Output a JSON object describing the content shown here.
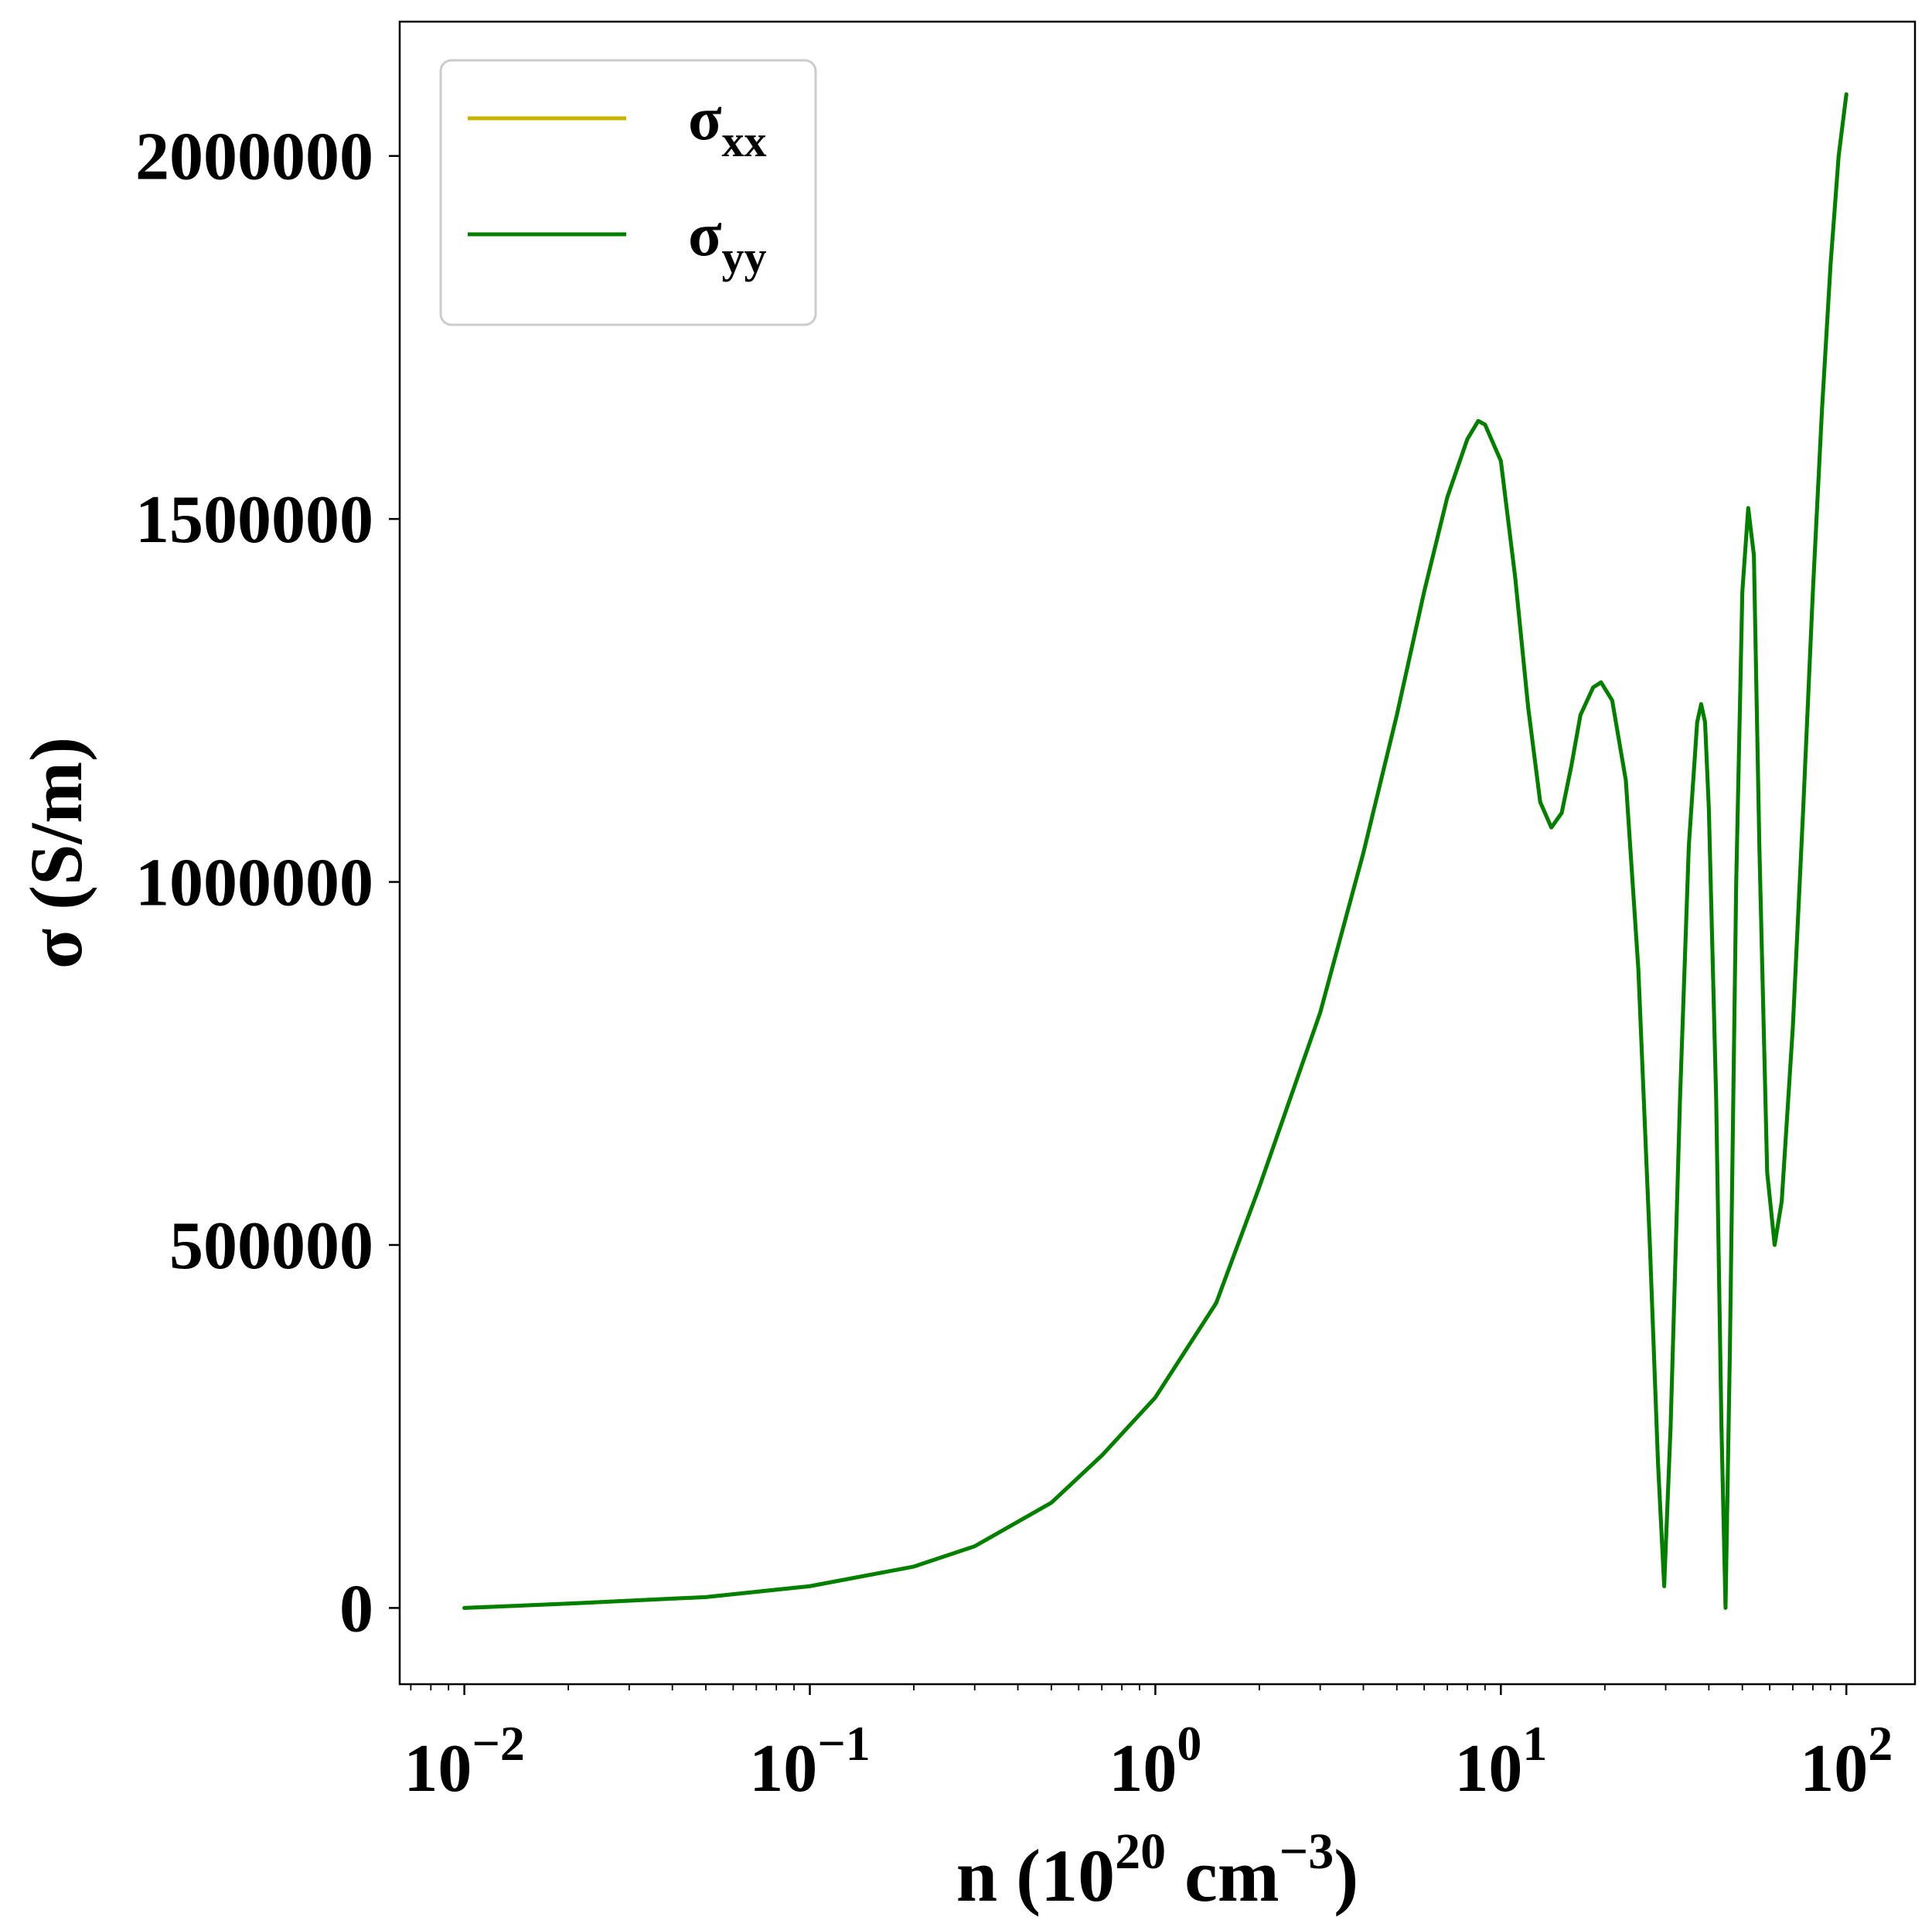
{
  "chart_data": {
    "type": "line",
    "x_scale": "log",
    "xlim": [
      0.0065,
      158
    ],
    "ylim": [
      -105000,
      2185000
    ],
    "xlabel": {
      "main": "n (10",
      "sup1": "20",
      "mid": " cm",
      "sup2": "−3",
      "tail": ")"
    },
    "ylabel": "σ (S/m)",
    "x_ticks": [
      {
        "value": 0.01,
        "base": "10",
        "exp": "−2"
      },
      {
        "value": 0.1,
        "base": "10",
        "exp": "−1"
      },
      {
        "value": 1,
        "base": "10",
        "exp": "0"
      },
      {
        "value": 10,
        "base": "10",
        "exp": "1"
      },
      {
        "value": 100,
        "base": "10",
        "exp": "2"
      }
    ],
    "y_ticks": [
      {
        "value": 0,
        "label": "0"
      },
      {
        "value": 500000,
        "label": "500000"
      },
      {
        "value": 1000000,
        "label": "1000000"
      },
      {
        "value": 1500000,
        "label": "1500000"
      },
      {
        "value": 2000000,
        "label": "2000000"
      }
    ],
    "legend": {
      "placement": "top-left",
      "entries": [
        {
          "symbol": "σ",
          "sub": "xx",
          "color": "#c8b400"
        },
        {
          "symbol": "σ",
          "sub": "yy",
          "color": "#008000"
        }
      ]
    },
    "grid": false,
    "series": [
      {
        "color": "#c8b400",
        "points": [
          [
            0.01,
            0
          ],
          [
            0.02,
            6000
          ],
          [
            0.05,
            15000
          ],
          [
            0.1,
            30000
          ],
          [
            0.2,
            57000
          ],
          [
            0.3,
            85000
          ],
          [
            0.5,
            145000
          ],
          [
            0.7,
            210000
          ],
          [
            1.0,
            290000
          ],
          [
            1.5,
            420000
          ],
          [
            2.0,
            580000
          ],
          [
            3.0,
            820000
          ],
          [
            4.0,
            1040000
          ],
          [
            5.0,
            1230000
          ],
          [
            6.0,
            1400000
          ],
          [
            7.0,
            1530000
          ],
          [
            8.0,
            1610000
          ],
          [
            8.6,
            1635000
          ],
          [
            9.0,
            1630000
          ],
          [
            10.0,
            1580000
          ],
          [
            11.0,
            1420000
          ],
          [
            12.0,
            1240000
          ],
          [
            13.0,
            1110000
          ],
          [
            14.0,
            1075000
          ],
          [
            15.0,
            1095000
          ],
          [
            16.0,
            1160000
          ],
          [
            17.0,
            1230000
          ],
          [
            18.5,
            1268000
          ],
          [
            19.5,
            1275000
          ],
          [
            21.0,
            1250000
          ],
          [
            23.0,
            1140000
          ],
          [
            25.0,
            880000
          ],
          [
            27.0,
            500000
          ],
          [
            28.5,
            200000
          ],
          [
            29.7,
            30000
          ],
          [
            31.0,
            250000
          ],
          [
            33.0,
            700000
          ],
          [
            35.0,
            1050000
          ],
          [
            37.0,
            1220000
          ],
          [
            38.0,
            1245000
          ],
          [
            39.0,
            1220000
          ],
          [
            40.0,
            1100000
          ],
          [
            42.0,
            700000
          ],
          [
            43.5,
            250000
          ],
          [
            44.7,
            0
          ],
          [
            46.0,
            350000
          ],
          [
            48.0,
            1000000
          ],
          [
            50.0,
            1400000
          ],
          [
            52.0,
            1515000
          ],
          [
            54.0,
            1450000
          ],
          [
            56.0,
            1050000
          ],
          [
            59.0,
            600000
          ],
          [
            62.0,
            500000
          ],
          [
            65.0,
            560000
          ],
          [
            70.0,
            800000
          ],
          [
            75.0,
            1100000
          ],
          [
            80.0,
            1400000
          ],
          [
            85.0,
            1650000
          ],
          [
            90.0,
            1850000
          ],
          [
            95.0,
            2000000
          ],
          [
            100.0,
            2085000
          ]
        ]
      },
      {
        "color": "#008000",
        "points": [
          [
            0.01,
            0
          ],
          [
            0.02,
            6000
          ],
          [
            0.05,
            15000
          ],
          [
            0.1,
            30000
          ],
          [
            0.2,
            57000
          ],
          [
            0.3,
            85000
          ],
          [
            0.5,
            145000
          ],
          [
            0.7,
            210000
          ],
          [
            1.0,
            290000
          ],
          [
            1.5,
            420000
          ],
          [
            2.0,
            580000
          ],
          [
            3.0,
            820000
          ],
          [
            4.0,
            1040000
          ],
          [
            5.0,
            1230000
          ],
          [
            6.0,
            1400000
          ],
          [
            7.0,
            1530000
          ],
          [
            8.0,
            1610000
          ],
          [
            8.6,
            1635000
          ],
          [
            9.0,
            1630000
          ],
          [
            10.0,
            1580000
          ],
          [
            11.0,
            1420000
          ],
          [
            12.0,
            1240000
          ],
          [
            13.0,
            1110000
          ],
          [
            14.0,
            1075000
          ],
          [
            15.0,
            1095000
          ],
          [
            16.0,
            1160000
          ],
          [
            17.0,
            1230000
          ],
          [
            18.5,
            1268000
          ],
          [
            19.5,
            1275000
          ],
          [
            21.0,
            1250000
          ],
          [
            23.0,
            1140000
          ],
          [
            25.0,
            880000
          ],
          [
            27.0,
            500000
          ],
          [
            28.5,
            200000
          ],
          [
            29.7,
            30000
          ],
          [
            31.0,
            250000
          ],
          [
            33.0,
            700000
          ],
          [
            35.0,
            1050000
          ],
          [
            37.0,
            1220000
          ],
          [
            38.0,
            1245000
          ],
          [
            39.0,
            1220000
          ],
          [
            40.0,
            1100000
          ],
          [
            42.0,
            700000
          ],
          [
            43.5,
            250000
          ],
          [
            44.7,
            0
          ],
          [
            46.0,
            350000
          ],
          [
            48.0,
            1000000
          ],
          [
            50.0,
            1400000
          ],
          [
            52.0,
            1515000
          ],
          [
            54.0,
            1450000
          ],
          [
            56.0,
            1050000
          ],
          [
            59.0,
            600000
          ],
          [
            62.0,
            500000
          ],
          [
            65.0,
            560000
          ],
          [
            70.0,
            800000
          ],
          [
            75.0,
            1100000
          ],
          [
            80.0,
            1400000
          ],
          [
            85.0,
            1650000
          ],
          [
            90.0,
            1850000
          ],
          [
            95.0,
            2000000
          ],
          [
            100.0,
            2085000
          ]
        ]
      }
    ]
  }
}
